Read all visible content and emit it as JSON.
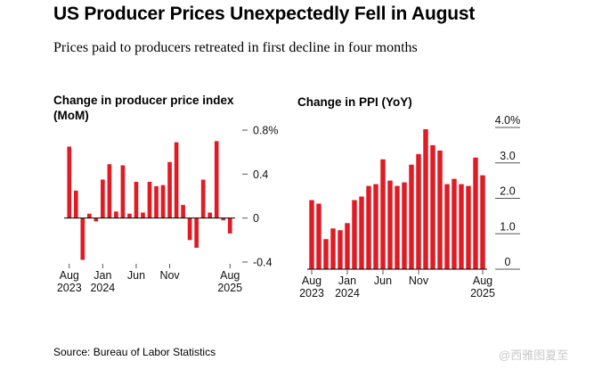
{
  "title": "US Producer Prices Unexpectedly Fell in August",
  "subtitle": "Prices paid to producers retreated in first decline in four months",
  "source": "Source: Bureau of Labor Statistics",
  "watermark": "@西雅图夏至",
  "colors": {
    "bar": "#e01b24",
    "axis": "#000000",
    "tick": "#555555"
  },
  "chart_data": [
    {
      "type": "bar",
      "title": "Change in producer price index (MoM)",
      "ylabel": "%",
      "ylim": [
        -0.4,
        0.8
      ],
      "yticks": [
        0.8,
        0.4,
        0,
        -0.4
      ],
      "ytick_labels": [
        "0.8%",
        "0.4",
        "0",
        "-0.4"
      ],
      "categories": [
        "Aug 2023",
        "Sep 2023",
        "Oct 2023",
        "Nov 2023",
        "Dec 2023",
        "Jan 2024",
        "Feb 2024",
        "Mar 2024",
        "Apr 2024",
        "May 2024",
        "Jun 2024",
        "Jul 2024",
        "Aug 2024",
        "Sep 2024",
        "Oct 2024",
        "Nov 2024",
        "Dec 2024",
        "Jan 2025",
        "Feb 2025",
        "Mar 2025",
        "Apr 2025",
        "May 2025",
        "Jun 2025",
        "Jul 2025",
        "Aug 2025"
      ],
      "values": [
        0.65,
        0.25,
        -0.38,
        0.04,
        -0.03,
        0.35,
        0.49,
        0.06,
        0.48,
        0.04,
        0.33,
        0.05,
        0.33,
        0.29,
        0.3,
        0.51,
        0.69,
        0.12,
        -0.2,
        -0.27,
        0.35,
        0.05,
        0.7,
        -0.02,
        -0.14
      ],
      "xtick_labels": [
        {
          "index": 0,
          "line1": "Aug",
          "line2": "2023"
        },
        {
          "index": 5,
          "line1": "Jan",
          "line2": "2024"
        },
        {
          "index": 10,
          "line1": "Jun",
          "line2": ""
        },
        {
          "index": 15,
          "line1": "Nov",
          "line2": ""
        },
        {
          "index": 24,
          "line1": "Aug",
          "line2": "2025"
        }
      ]
    },
    {
      "type": "bar",
      "title": "Change in PPI (YoY)",
      "ylabel": "%",
      "ylim": [
        0,
        4.0
      ],
      "yticks": [
        4.0,
        3.0,
        2.0,
        1.0,
        0
      ],
      "ytick_labels": [
        "4.0%",
        "3.0",
        "2.0",
        "1.0",
        "0"
      ],
      "categories": [
        "Aug 2023",
        "Sep 2023",
        "Oct 2023",
        "Nov 2023",
        "Dec 2023",
        "Jan 2024",
        "Feb 2024",
        "Mar 2024",
        "Apr 2024",
        "May 2024",
        "Jun 2024",
        "Jul 2024",
        "Aug 2024",
        "Sep 2024",
        "Oct 2024",
        "Nov 2024",
        "Dec 2024",
        "Jan 2025",
        "Feb 2025",
        "Mar 2025",
        "Apr 2025",
        "May 2025",
        "Jun 2025",
        "Jul 2025",
        "Aug 2025"
      ],
      "values": [
        1.95,
        1.85,
        0.85,
        1.15,
        1.1,
        1.3,
        1.95,
        2.05,
        2.35,
        2.4,
        3.1,
        2.5,
        2.35,
        2.45,
        2.95,
        3.25,
        3.95,
        3.5,
        3.35,
        2.4,
        2.55,
        2.4,
        2.35,
        3.15,
        2.65
      ]
    }
  ]
}
